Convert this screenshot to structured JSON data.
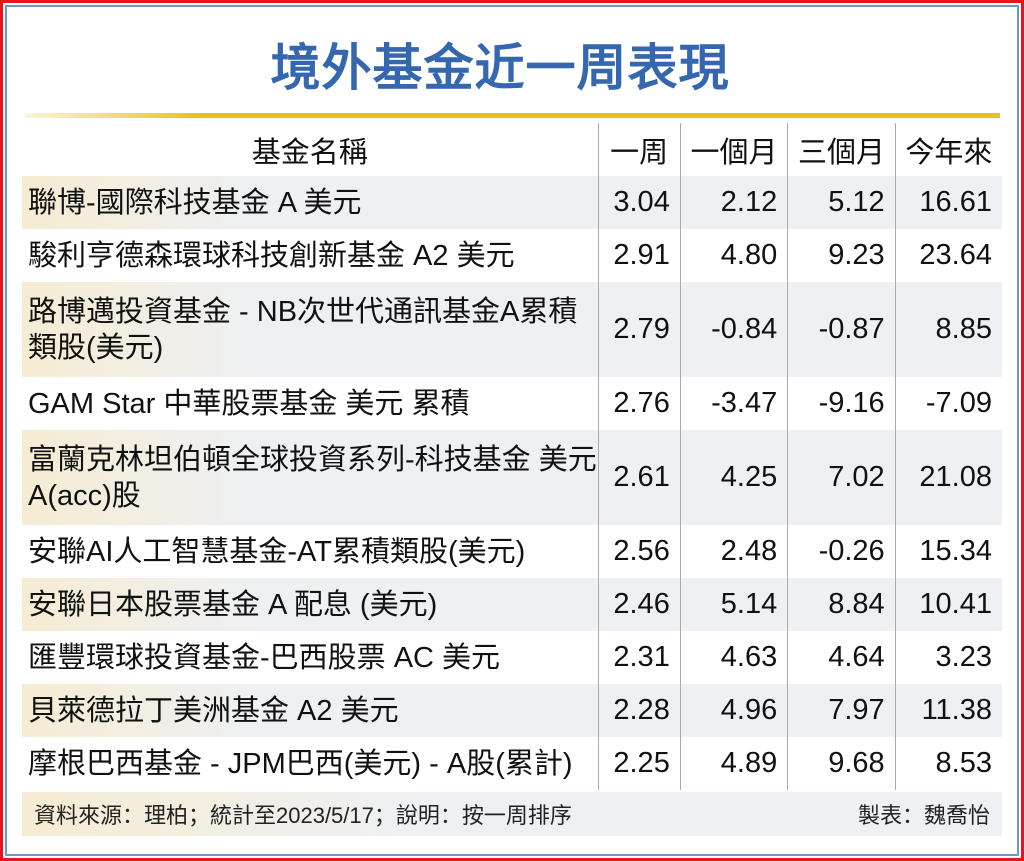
{
  "title": "境外基金近一周表現",
  "chart_data": {
    "type": "table",
    "columns": [
      "基金名稱",
      "一周",
      "一個月",
      "三個月",
      "今年來"
    ],
    "rows": [
      [
        "聯博-國際科技基金 A 美元",
        "3.04",
        "2.12",
        "5.12",
        "16.61"
      ],
      [
        "駿利亨德森環球科技創新基金 A2 美元",
        "2.91",
        "4.80",
        "9.23",
        "23.64"
      ],
      [
        "路博邁投資基金 - NB次世代通訊基金A累積類股(美元)",
        "2.79",
        "-0.84",
        "-0.87",
        "8.85"
      ],
      [
        "GAM Star 中華股票基金 美元 累積",
        "2.76",
        "-3.47",
        "-9.16",
        "-7.09"
      ],
      [
        "富蘭克林坦伯頓全球投資系列-科技基金 美元A(acc)股",
        "2.61",
        "4.25",
        "7.02",
        "21.08"
      ],
      [
        "安聯AI人工智慧基金-AT累積類股(美元)",
        "2.56",
        "2.48",
        "-0.26",
        "15.34"
      ],
      [
        "安聯日本股票基金 A 配息 (美元)",
        "2.46",
        "5.14",
        "8.84",
        "10.41"
      ],
      [
        "匯豐環球投資基金-巴西股票 AC 美元",
        "2.31",
        "4.63",
        "4.64",
        "3.23"
      ],
      [
        "貝萊德拉丁美洲基金 A2 美元",
        "2.28",
        "4.96",
        "7.97",
        "11.38"
      ],
      [
        "摩根巴西基金 - JPM巴西(美元) - A股(累計)",
        "2.25",
        "4.89",
        "9.68",
        "8.53"
      ]
    ]
  },
  "footer": {
    "source": "資料來源：理柏；統計至2023/5/17；說明：按一周排序",
    "author": "製表：魏喬怡"
  },
  "colors": {
    "title": "#3566b0",
    "rule": "#e6c21d",
    "outer_border": "#e8141b",
    "inner_border": "#6f95cf"
  }
}
